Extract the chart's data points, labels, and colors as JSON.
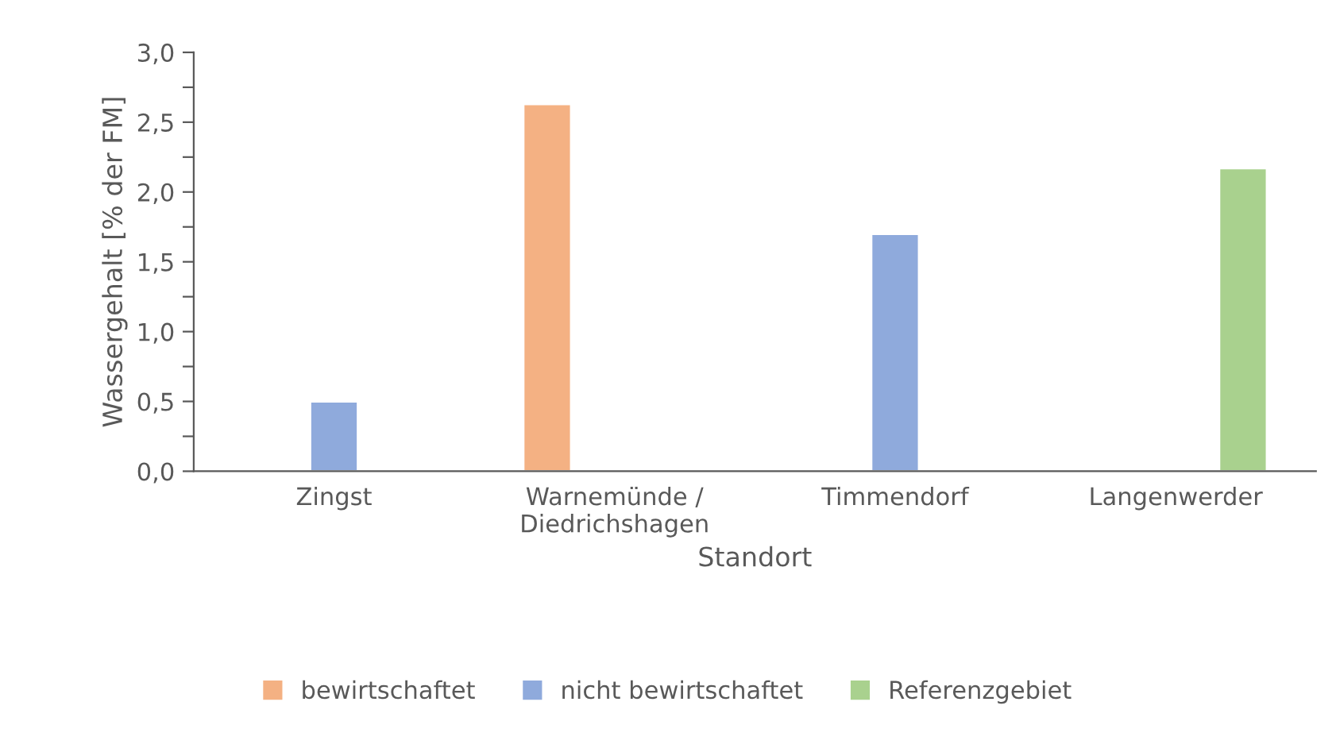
{
  "chart_data": {
    "type": "bar",
    "xlabel": "Standort",
    "ylabel": "Wassergehalt [% der FM]",
    "categories": [
      "Zingst",
      "Warnemünde /\nDiedrichshagen",
      "Timmendorf",
      "Langenwerder"
    ],
    "series": [
      {
        "name": "bewirtschaftet",
        "color": "#f4b183",
        "values": [
          null,
          2.63,
          null,
          null
        ]
      },
      {
        "name": "nicht bewirtschaftet",
        "color": "#8faadc",
        "values": [
          0.5,
          null,
          1.7,
          null
        ]
      },
      {
        "name": "Referenzgebiet",
        "color": "#a9d18e",
        "values": [
          null,
          null,
          null,
          2.17
        ]
      }
    ],
    "ylim": [
      0,
      3
    ],
    "yticks": [
      {
        "value": 0,
        "label": "0,0"
      },
      {
        "value": 0.25,
        "label": null
      },
      {
        "value": 0.5,
        "label": "0,5"
      },
      {
        "value": 0.75,
        "label": null
      },
      {
        "value": 1,
        "label": "1,0"
      },
      {
        "value": 1.25,
        "label": null
      },
      {
        "value": 1.5,
        "label": "1,5"
      },
      {
        "value": 1.75,
        "label": null
      },
      {
        "value": 2,
        "label": "2,0"
      },
      {
        "value": 2.25,
        "label": null
      },
      {
        "value": 2.5,
        "label": "2,5"
      },
      {
        "value": 2.75,
        "label": null
      },
      {
        "value": 3,
        "label": "3,0"
      }
    ],
    "grid": false,
    "legend": "bottom"
  }
}
